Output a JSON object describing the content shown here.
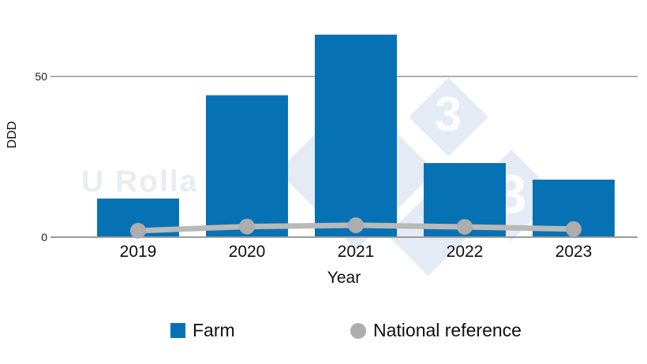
{
  "chart_data": {
    "type": "bar",
    "title": "",
    "categories": [
      "2019",
      "2020",
      "2021",
      "2022",
      "2023"
    ],
    "series": [
      {
        "name": "Farm",
        "kind": "bar",
        "color": "#0672b4",
        "values": [
          12,
          44,
          63,
          23,
          18
        ]
      },
      {
        "name": "National reference",
        "kind": "line",
        "color": "#b9b9b9",
        "point_color": "#adadad",
        "values": [
          2,
          3.3,
          3.7,
          3.2,
          2.5
        ]
      }
    ],
    "xlabel": "Year",
    "ylabel": "DDD",
    "yticks": [
      0,
      50
    ],
    "ylim": [
      0,
      73
    ],
    "grid": "horizontal",
    "legend_position": "bottom"
  },
  "watermark": {
    "text": "U Rolla",
    "logo_digit": "3",
    "diamond_color": "#e4ebf4",
    "digit_color": "#fbfdfe",
    "text_color": "#e9edf2"
  }
}
